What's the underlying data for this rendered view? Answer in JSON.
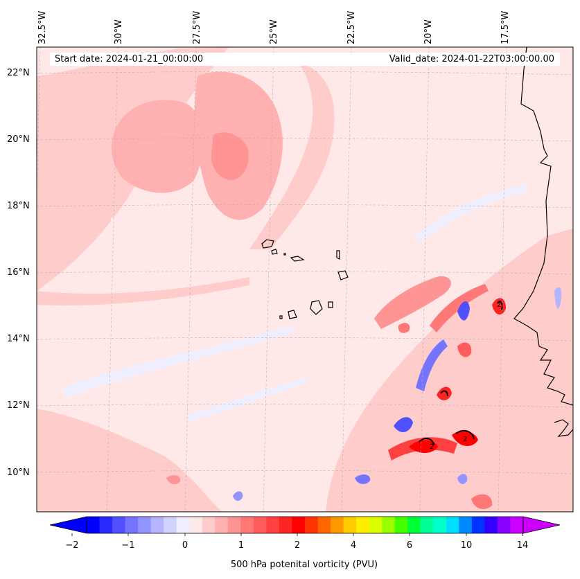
{
  "map": {
    "start_date": "Start date: 2024-01-21_00:00:00",
    "valid_date": "Valid_date: 2024-01-22T03:00:00.00",
    "lon_labels": [
      "32.5°W",
      "30°W",
      "27.5°W",
      "25°W",
      "22.5°W",
      "20°W",
      "17.5°W"
    ],
    "lat_labels": [
      "22°N",
      "20°N",
      "18°N",
      "16°N",
      "14°N",
      "12°N",
      "10°N"
    ],
    "gridlines": "dashed",
    "contour_label": "2"
  },
  "colorbar": {
    "title": "500 hPa potenital vorticity (PVU)",
    "tick_labels": [
      "−2",
      "−1",
      "0",
      "1",
      "2",
      "4",
      "6",
      "10",
      "14"
    ],
    "colors": [
      "#0000ff",
      "#2a2aff",
      "#5050ff",
      "#7474ff",
      "#9494ff",
      "#b4b4ff",
      "#d2d2ff",
      "#eeeeff",
      "#ffe8e8",
      "#ffcccc",
      "#ffb0b0",
      "#ff9494",
      "#ff7878",
      "#ff5c5c",
      "#ff4040",
      "#ff2424",
      "#ff0000",
      "#ff3300",
      "#ff6600",
      "#ff9900",
      "#ffcc00",
      "#ffee00",
      "#ddff00",
      "#99ff00",
      "#44ff00",
      "#00ff33",
      "#00ff99",
      "#00ffcc",
      "#00ddff",
      "#0088ff",
      "#0033ff",
      "#3300ff",
      "#8800ff",
      "#cc00ff"
    ],
    "left_extend_color": "#0000ff",
    "right_extend_color": "#cc00ff"
  }
}
